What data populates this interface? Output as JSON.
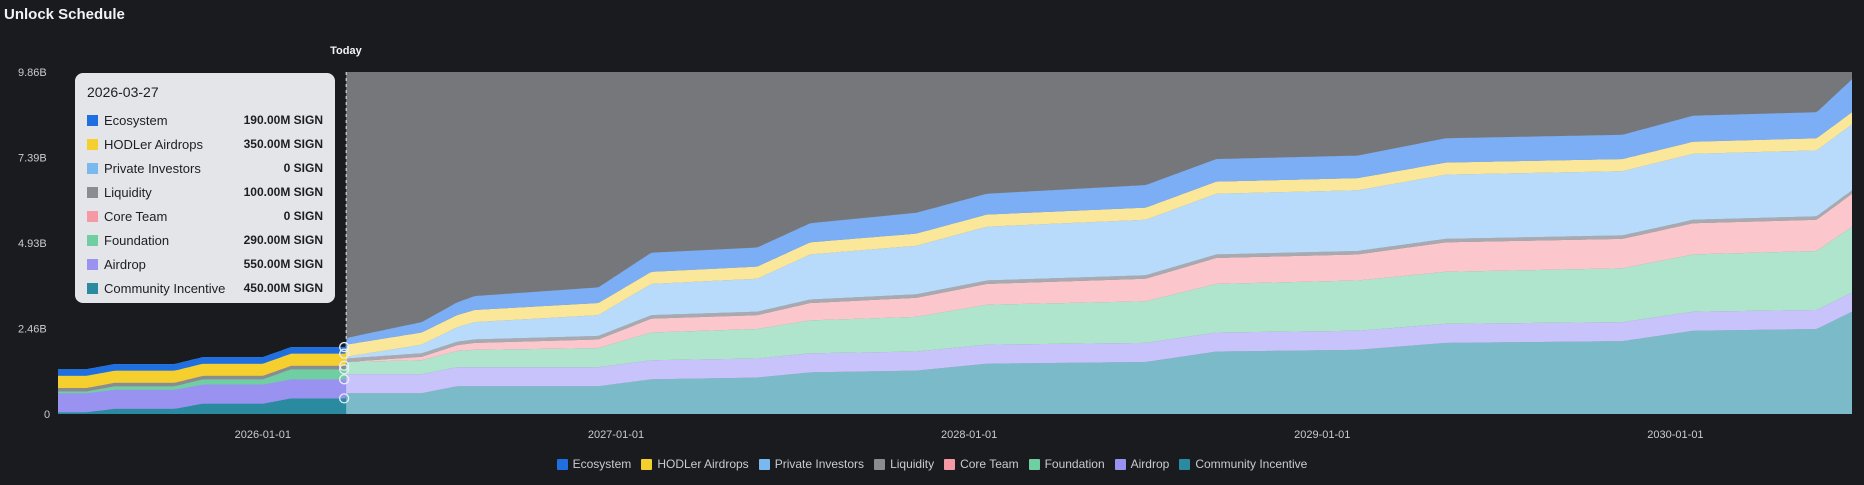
{
  "title": "Unlock Schedule",
  "colors": {
    "Ecosystem": "#7baef5",
    "HODLer Airdrops": "#fbe79a",
    "Private Investors": "#b8dbfb",
    "Liquidity": "#a8aab0",
    "Core Team": "#fbc6cc",
    "Foundation": "#aee5cc",
    "Airdrop": "#c8c3fb",
    "Community Incentive": "#7bbac8"
  },
  "swatch_colors": {
    "Ecosystem": "#1f6fe0",
    "HODLer Airdrops": "#f5cf2e",
    "Private Investors": "#7ab8f0",
    "Liquidity": "#8a8c91",
    "Core Team": "#f59aa5",
    "Foundation": "#6fcfa2",
    "Airdrop": "#9a92f0",
    "Community Incentive": "#2a8aa0"
  },
  "tooltip": {
    "date": "2026-03-27",
    "rows": [
      {
        "name": "Ecosystem",
        "value": "190.00M SIGN"
      },
      {
        "name": "HODLer Airdrops",
        "value": "350.00M SIGN"
      },
      {
        "name": "Private Investors",
        "value": "0 SIGN"
      },
      {
        "name": "Liquidity",
        "value": "100.00M SIGN"
      },
      {
        "name": "Core Team",
        "value": "0 SIGN"
      },
      {
        "name": "Foundation",
        "value": "290.00M SIGN"
      },
      {
        "name": "Airdrop",
        "value": "550.00M SIGN"
      },
      {
        "name": "Community Incentive",
        "value": "450.00M SIGN"
      }
    ]
  },
  "chart_data": {
    "type": "area",
    "stacked": true,
    "title": "Unlock Schedule",
    "today_label": "Today",
    "today": 2026.236,
    "x_start": 2025.42,
    "x_end": 2030.5,
    "ylim": [
      0,
      9.86
    ],
    "y_unit": "B SIGN",
    "y_ticks": [
      {
        "value": 0,
        "label": "0"
      },
      {
        "value": 2.46,
        "label": "2.46B"
      },
      {
        "value": 4.93,
        "label": "4.93B"
      },
      {
        "value": 7.39,
        "label": "7.39B"
      },
      {
        "value": 9.86,
        "label": "9.86B"
      }
    ],
    "x_ticks": [
      {
        "value": 2026.0,
        "label": "2026-01-01"
      },
      {
        "value": 2027.0,
        "label": "2027-01-01"
      },
      {
        "value": 2028.0,
        "label": "2028-01-01"
      },
      {
        "value": 2029.0,
        "label": "2029-01-01"
      },
      {
        "value": 2030.0,
        "label": "2030-01-01"
      }
    ],
    "legend": [
      "Ecosystem",
      "HODLer Airdrops",
      "Private Investors",
      "Liquidity",
      "Core Team",
      "Foundation",
      "Airdrop",
      "Community Incentive"
    ],
    "series": [
      {
        "name": "Community Incentive",
        "points": [
          [
            2025.42,
            0.05
          ],
          [
            2025.5,
            0.05
          ],
          [
            2025.58,
            0.15
          ],
          [
            2025.75,
            0.15
          ],
          [
            2025.83,
            0.3
          ],
          [
            2026.0,
            0.3
          ],
          [
            2026.08,
            0.45
          ],
          [
            2026.24,
            0.45
          ],
          [
            2026.236,
            0.6
          ],
          [
            2026.45,
            0.6
          ],
          [
            2026.55,
            0.8
          ],
          [
            2026.95,
            0.8
          ],
          [
            2027.1,
            1.0
          ],
          [
            2027.4,
            1.05
          ],
          [
            2027.55,
            1.2
          ],
          [
            2027.85,
            1.25
          ],
          [
            2028.05,
            1.45
          ],
          [
            2028.5,
            1.5
          ],
          [
            2028.7,
            1.8
          ],
          [
            2029.1,
            1.85
          ],
          [
            2029.35,
            2.05
          ],
          [
            2029.85,
            2.1
          ],
          [
            2030.05,
            2.4
          ],
          [
            2030.4,
            2.45
          ],
          [
            2030.5,
            2.95
          ]
        ]
      },
      {
        "name": "Airdrop",
        "points": [
          [
            2025.42,
            0.55
          ],
          [
            2025.5,
            0.55
          ],
          [
            2025.58,
            0.55
          ],
          [
            2025.83,
            0.55
          ],
          [
            2026.24,
            0.55
          ],
          [
            2026.236,
            0.55
          ],
          [
            2030.5,
            0.55
          ]
        ]
      },
      {
        "name": "Foundation",
        "points": [
          [
            2025.42,
            0.05
          ],
          [
            2025.5,
            0.05
          ],
          [
            2025.58,
            0.1
          ],
          [
            2025.75,
            0.1
          ],
          [
            2025.83,
            0.15
          ],
          [
            2026.0,
            0.15
          ],
          [
            2026.08,
            0.29
          ],
          [
            2026.24,
            0.29
          ],
          [
            2026.236,
            0.35
          ],
          [
            2026.45,
            0.4
          ],
          [
            2026.6,
            0.5
          ],
          [
            2026.95,
            0.55
          ],
          [
            2027.1,
            0.8
          ],
          [
            2027.4,
            0.85
          ],
          [
            2027.55,
            0.95
          ],
          [
            2027.85,
            1.0
          ],
          [
            2028.05,
            1.15
          ],
          [
            2028.5,
            1.2
          ],
          [
            2028.7,
            1.4
          ],
          [
            2029.1,
            1.45
          ],
          [
            2029.35,
            1.5
          ],
          [
            2029.85,
            1.55
          ],
          [
            2030.05,
            1.65
          ],
          [
            2030.4,
            1.7
          ],
          [
            2030.5,
            1.9
          ]
        ]
      },
      {
        "name": "Core Team",
        "points": [
          [
            2025.42,
            0.0
          ],
          [
            2026.24,
            0.0
          ],
          [
            2026.236,
            0.0
          ],
          [
            2026.45,
            0.1
          ],
          [
            2026.6,
            0.2
          ],
          [
            2026.95,
            0.25
          ],
          [
            2027.1,
            0.4
          ],
          [
            2027.4,
            0.4
          ],
          [
            2027.55,
            0.5
          ],
          [
            2027.85,
            0.55
          ],
          [
            2028.05,
            0.6
          ],
          [
            2028.5,
            0.65
          ],
          [
            2028.7,
            0.75
          ],
          [
            2029.1,
            0.75
          ],
          [
            2029.35,
            0.85
          ],
          [
            2029.85,
            0.85
          ],
          [
            2030.05,
            0.9
          ],
          [
            2030.4,
            0.9
          ],
          [
            2030.5,
            0.95
          ]
        ]
      },
      {
        "name": "Liquidity",
        "points": [
          [
            2025.42,
            0.1
          ],
          [
            2030.5,
            0.1
          ]
        ]
      },
      {
        "name": "Private Investors",
        "points": [
          [
            2025.42,
            0.0
          ],
          [
            2026.24,
            0.0
          ],
          [
            2026.236,
            0.05
          ],
          [
            2026.45,
            0.25
          ],
          [
            2026.6,
            0.5
          ],
          [
            2026.95,
            0.6
          ],
          [
            2027.1,
            0.9
          ],
          [
            2027.4,
            0.95
          ],
          [
            2027.55,
            1.3
          ],
          [
            2027.85,
            1.4
          ],
          [
            2028.05,
            1.55
          ],
          [
            2028.5,
            1.6
          ],
          [
            2028.7,
            1.75
          ],
          [
            2029.1,
            1.75
          ],
          [
            2029.35,
            1.85
          ],
          [
            2029.85,
            1.85
          ],
          [
            2030.05,
            1.9
          ],
          [
            2030.4,
            1.9
          ],
          [
            2030.5,
            1.9
          ]
        ]
      },
      {
        "name": "HODLer Airdrops",
        "points": [
          [
            2025.42,
            0.35
          ],
          [
            2030.5,
            0.35
          ]
        ]
      },
      {
        "name": "Ecosystem",
        "points": [
          [
            2025.42,
            0.19
          ],
          [
            2026.236,
            0.19
          ],
          [
            2026.45,
            0.3
          ],
          [
            2026.6,
            0.4
          ],
          [
            2026.95,
            0.45
          ],
          [
            2027.1,
            0.55
          ],
          [
            2027.4,
            0.55
          ],
          [
            2027.55,
            0.55
          ],
          [
            2027.85,
            0.6
          ],
          [
            2028.05,
            0.6
          ],
          [
            2028.5,
            0.65
          ],
          [
            2028.7,
            0.65
          ],
          [
            2029.1,
            0.65
          ],
          [
            2029.35,
            0.7
          ],
          [
            2029.85,
            0.7
          ],
          [
            2030.05,
            0.75
          ],
          [
            2030.4,
            0.75
          ],
          [
            2030.5,
            0.95
          ]
        ]
      }
    ]
  }
}
